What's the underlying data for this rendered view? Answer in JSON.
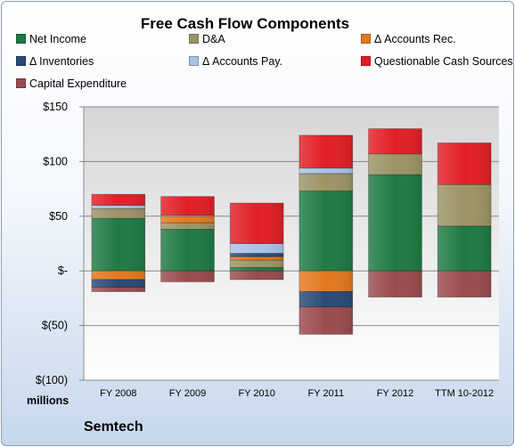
{
  "chart_data": {
    "type": "bar",
    "stacked": true,
    "title": "Free Cash Flow Components",
    "company": "Semtech",
    "units": "millions",
    "categories": [
      "FY 2008",
      "FY 2009",
      "FY 2010",
      "FY 2011",
      "FY 2012",
      "TTM 10-2012"
    ],
    "ylim": [
      -100,
      150
    ],
    "yticks": [
      {
        "value": 150,
        "label": "$150"
      },
      {
        "value": 100,
        "label": "$100"
      },
      {
        "value": 50,
        "label": "$50"
      },
      {
        "value": 0,
        "label": "$-"
      },
      {
        "value": -50,
        "label": "$(50)"
      },
      {
        "value": -100,
        "label": "$(100)"
      }
    ],
    "grid": true,
    "legend_position": "top",
    "series": [
      {
        "name": "Net Income",
        "color": "#1e7a45",
        "values": [
          48,
          38,
          3,
          73,
          88,
          41
        ]
      },
      {
        "name": "D&A",
        "color": "#9c9465",
        "values": [
          9,
          6,
          7,
          16,
          19,
          38
        ]
      },
      {
        "name": "Δ Accounts Rec.",
        "color": "#e2781f",
        "values": [
          -8,
          6,
          3,
          -19,
          0,
          0
        ]
      },
      {
        "name": "Δ Inventories",
        "color": "#284a75",
        "values": [
          -7,
          0,
          3,
          -14,
          0,
          0
        ]
      },
      {
        "name": "Δ Accounts Pay.",
        "color": "#a9c3e6",
        "values": [
          3,
          1,
          9,
          5,
          0,
          0
        ]
      },
      {
        "name": "Questionable Cash Sources",
        "color": "#e21e26",
        "values": [
          10,
          17,
          37,
          30,
          23,
          38
        ]
      },
      {
        "name": "Capital Expenditure",
        "color": "#9a4b4e",
        "values": [
          -4,
          -10,
          -8,
          -25,
          -24,
          -24
        ]
      }
    ]
  }
}
